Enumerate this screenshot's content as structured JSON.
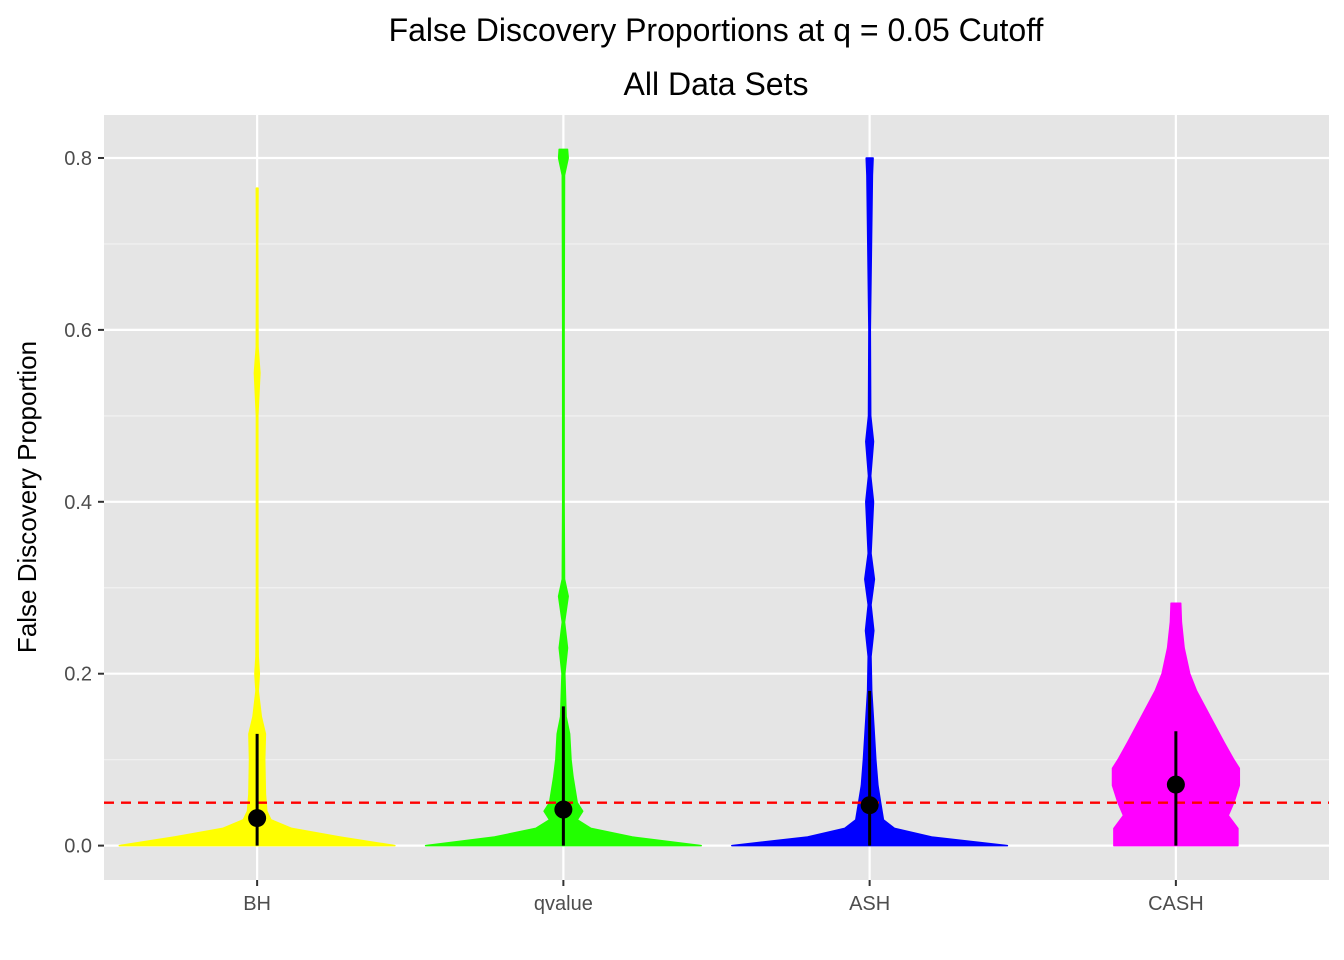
{
  "chart_data": {
    "type": "violin",
    "title": "False Discovery Proportions at q = 0.05 Cutoff",
    "subtitle": "All Data Sets",
    "xlabel": "",
    "ylabel": "False Discovery Proportion",
    "ylim": [
      -0.04,
      0.85
    ],
    "y_ticks": [
      0.0,
      0.2,
      0.4,
      0.6,
      0.8
    ],
    "y_tick_labels": [
      "0.0",
      "0.2",
      "0.4",
      "0.6",
      "0.8"
    ],
    "grid": true,
    "background": "#e5e5e5",
    "reference_line": {
      "y": 0.05,
      "color": "#ff0000",
      "style": "dashed"
    },
    "categories": [
      "BH",
      "qvalue",
      "ASH",
      "CASH"
    ],
    "series": [
      {
        "category": "BH",
        "color": "#ffff00",
        "median": 0.032,
        "range": [
          0.0,
          0.13
        ],
        "max": 0.765,
        "density": [
          [
            0.0,
            1.0
          ],
          [
            0.01,
            0.6
          ],
          [
            0.02,
            0.25
          ],
          [
            0.03,
            0.1
          ],
          [
            0.04,
            0.07
          ],
          [
            0.06,
            0.06
          ],
          [
            0.1,
            0.055
          ],
          [
            0.13,
            0.06
          ],
          [
            0.15,
            0.03
          ],
          [
            0.18,
            0.008
          ],
          [
            0.2,
            0.016
          ],
          [
            0.22,
            0.008
          ],
          [
            0.3,
            0.005
          ],
          [
            0.5,
            0.005
          ],
          [
            0.55,
            0.02
          ],
          [
            0.58,
            0.006
          ],
          [
            0.7,
            0.004
          ],
          [
            0.765,
            0.006
          ]
        ]
      },
      {
        "category": "qvalue",
        "color": "#22ff00",
        "median": 0.042,
        "range": [
          0.0,
          0.162
        ],
        "max": 0.81,
        "density": [
          [
            0.0,
            1.0
          ],
          [
            0.01,
            0.5
          ],
          [
            0.02,
            0.2
          ],
          [
            0.03,
            0.1
          ],
          [
            0.04,
            0.14
          ],
          [
            0.05,
            0.1
          ],
          [
            0.08,
            0.07
          ],
          [
            0.1,
            0.055
          ],
          [
            0.13,
            0.045
          ],
          [
            0.15,
            0.02
          ],
          [
            0.2,
            0.01
          ],
          [
            0.23,
            0.03
          ],
          [
            0.26,
            0.008
          ],
          [
            0.29,
            0.035
          ],
          [
            0.31,
            0.008
          ],
          [
            0.4,
            0.005
          ],
          [
            0.6,
            0.005
          ],
          [
            0.78,
            0.008
          ],
          [
            0.8,
            0.035
          ],
          [
            0.81,
            0.03
          ]
        ]
      },
      {
        "category": "ASH",
        "color": "#0000ff",
        "median": 0.047,
        "range": [
          0.0,
          0.18
        ],
        "max": 0.8,
        "density": [
          [
            0.0,
            1.0
          ],
          [
            0.01,
            0.45
          ],
          [
            0.02,
            0.18
          ],
          [
            0.03,
            0.1
          ],
          [
            0.05,
            0.08
          ],
          [
            0.07,
            0.06
          ],
          [
            0.1,
            0.045
          ],
          [
            0.14,
            0.03
          ],
          [
            0.18,
            0.015
          ],
          [
            0.22,
            0.01
          ],
          [
            0.25,
            0.03
          ],
          [
            0.28,
            0.01
          ],
          [
            0.31,
            0.035
          ],
          [
            0.34,
            0.01
          ],
          [
            0.4,
            0.028
          ],
          [
            0.43,
            0.008
          ],
          [
            0.47,
            0.028
          ],
          [
            0.5,
            0.008
          ],
          [
            0.6,
            0.005
          ],
          [
            0.78,
            0.02
          ],
          [
            0.8,
            0.025
          ]
        ]
      },
      {
        "category": "CASH",
        "color": "#ff00ff",
        "median": 0.071,
        "range": [
          0.0,
          0.133
        ],
        "max": 0.282,
        "density": [
          [
            0.0,
            0.45
          ],
          [
            0.02,
            0.45
          ],
          [
            0.035,
            0.38
          ],
          [
            0.05,
            0.42
          ],
          [
            0.07,
            0.46
          ],
          [
            0.09,
            0.46
          ],
          [
            0.1,
            0.42
          ],
          [
            0.12,
            0.35
          ],
          [
            0.15,
            0.25
          ],
          [
            0.18,
            0.15
          ],
          [
            0.2,
            0.1
          ],
          [
            0.23,
            0.06
          ],
          [
            0.26,
            0.04
          ],
          [
            0.282,
            0.035
          ]
        ]
      }
    ]
  }
}
